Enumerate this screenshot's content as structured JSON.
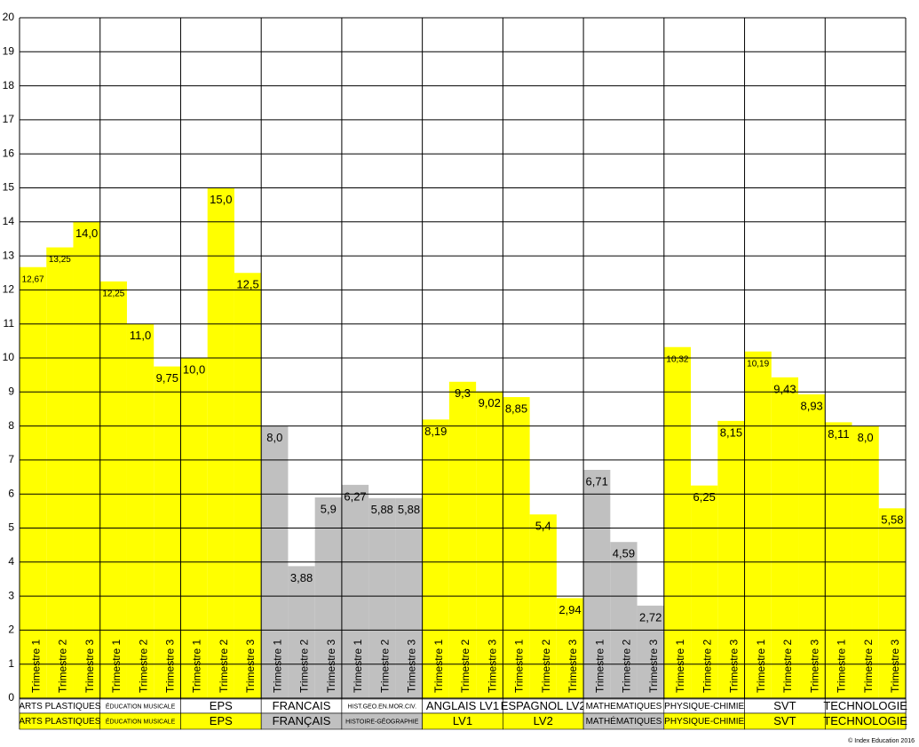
{
  "chart_data": {
    "type": "bar",
    "categories": [
      "Trimestre 1",
      "Trimestre 2",
      "Trimestre 3"
    ],
    "ylim": [
      0,
      20
    ],
    "yticks": [
      0,
      1,
      2,
      3,
      4,
      5,
      6,
      7,
      8,
      9,
      10,
      11,
      12,
      13,
      14,
      15,
      16,
      17,
      18,
      19,
      20
    ],
    "grid": true,
    "groups": [
      {
        "label": "ARTS PLASTIQUES",
        "sublabel": "ARTS PLASTIQUES",
        "color": "#ffff00",
        "values": [
          12.67,
          13.25,
          14.0
        ],
        "value_labels": [
          "12,67",
          "13,25",
          "14,0"
        ]
      },
      {
        "label": "ÉDUCATION MUSICALE",
        "sublabel": "ÉDUCATION MUSICALE",
        "color": "#ffff00",
        "values": [
          12.25,
          11.0,
          9.75
        ],
        "value_labels": [
          "12,25",
          "11,0",
          "9,75"
        ]
      },
      {
        "label": "EPS",
        "sublabel": "EPS",
        "color": "#ffff00",
        "values": [
          10.0,
          15.0,
          12.5
        ],
        "value_labels": [
          "10,0",
          "15,0",
          "12,5"
        ]
      },
      {
        "label": "FRANCAIS",
        "sublabel": "FRANÇAIS",
        "color": "#c0c0c0",
        "values": [
          8.0,
          3.88,
          5.9
        ],
        "value_labels": [
          "8,0",
          "3,88",
          "5,9"
        ]
      },
      {
        "label": "HIST.GEO.EN.MOR.CIV.",
        "sublabel": "HISTOIRE-GÉOGRAPHIE",
        "color": "#c0c0c0",
        "values": [
          6.27,
          5.88,
          5.88
        ],
        "value_labels": [
          "6,27",
          "5,88",
          "5,88"
        ]
      },
      {
        "label": "ANGLAIS LV1",
        "sublabel": "LV1",
        "color": "#ffff00",
        "values": [
          8.19,
          9.3,
          9.02
        ],
        "value_labels": [
          "8,19",
          "9,3",
          "9,02"
        ]
      },
      {
        "label": "ESPAGNOL LV2",
        "sublabel": "LV2",
        "color": "#ffff00",
        "values": [
          8.85,
          5.4,
          2.94
        ],
        "value_labels": [
          "8,85",
          "5,4",
          "2,94"
        ]
      },
      {
        "label": "MATHEMATIQUES",
        "sublabel": "MATHÉMATIQUES",
        "color": "#c0c0c0",
        "values": [
          6.71,
          4.59,
          2.72
        ],
        "value_labels": [
          "6,71",
          "4,59",
          "2,72"
        ]
      },
      {
        "label": "PHYSIQUE-CHIMIE",
        "sublabel": "PHYSIQUE-CHIMIE",
        "color": "#ffff00",
        "values": [
          10.32,
          6.25,
          8.15
        ],
        "value_labels": [
          "10,32",
          "6,25",
          "8,15"
        ]
      },
      {
        "label": "SVT",
        "sublabel": "SVT",
        "color": "#ffff00",
        "values": [
          10.19,
          9.43,
          8.93
        ],
        "value_labels": [
          "10,19",
          "9,43",
          "8,93"
        ]
      },
      {
        "label": "TECHNOLOGIE",
        "sublabel": "TECHNOLOGIE",
        "color": "#ffff00",
        "values": [
          8.11,
          8.0,
          5.58
        ],
        "value_labels": [
          "8,11",
          "8,0",
          "5,58"
        ]
      }
    ],
    "copyright": "© Index Education 2016"
  }
}
